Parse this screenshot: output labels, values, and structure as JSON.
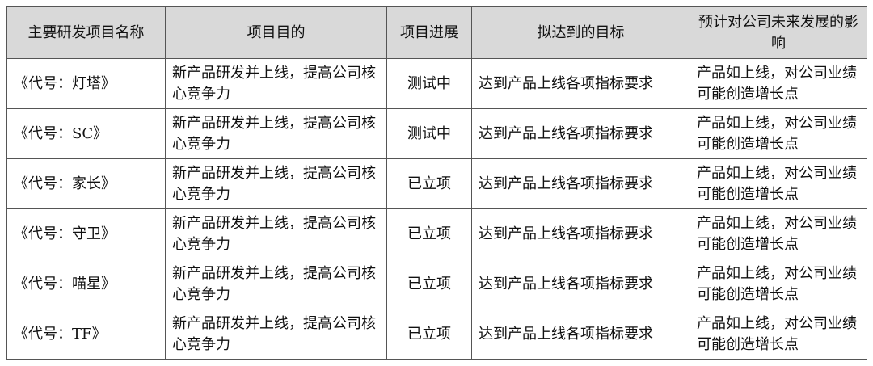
{
  "headers": [
    "主要研发项目名称",
    "项目目的",
    "项目进展",
    "拟达到的目标",
    "预计对公司未来发展的影响"
  ],
  "rows": [
    [
      "《代号：灯塔》",
      "新产品研发并上线，提高公司核心竞争力",
      "测试中",
      "达到产品上线各项指标要求",
      "产品如上线，对公司业绩可能创造增长点"
    ],
    [
      "《代号：SC》",
      "新产品研发并上线，提高公司核心竞争力",
      "测试中",
      "达到产品上线各项指标要求",
      "产品如上线，对公司业绩可能创造增长点"
    ],
    [
      "《代号：家长》",
      "新产品研发并上线，提高公司核心竞争力",
      "已立项",
      "达到产品上线各项指标要求",
      "产品如上线，对公司业绩可能创造增长点"
    ],
    [
      "《代号：守卫》",
      "新产品研发并上线，提高公司核心竞争力",
      "已立项",
      "达到产品上线各项指标要求",
      "产品如上线，对公司业绩可能创造增长点"
    ],
    [
      "《代号：喵星》",
      "新产品研发并上线，提高公司核心竞争力",
      "已立项",
      "达到产品上线各项指标要求",
      "产品如上线，对公司业绩可能创造增长点"
    ],
    [
      "《代号：TF》",
      "新产品研发并上线，提高公司核心竞争力",
      "已立项",
      "达到产品上线各项指标要求",
      "产品如上线，对公司业绩可能创造增长点"
    ]
  ]
}
